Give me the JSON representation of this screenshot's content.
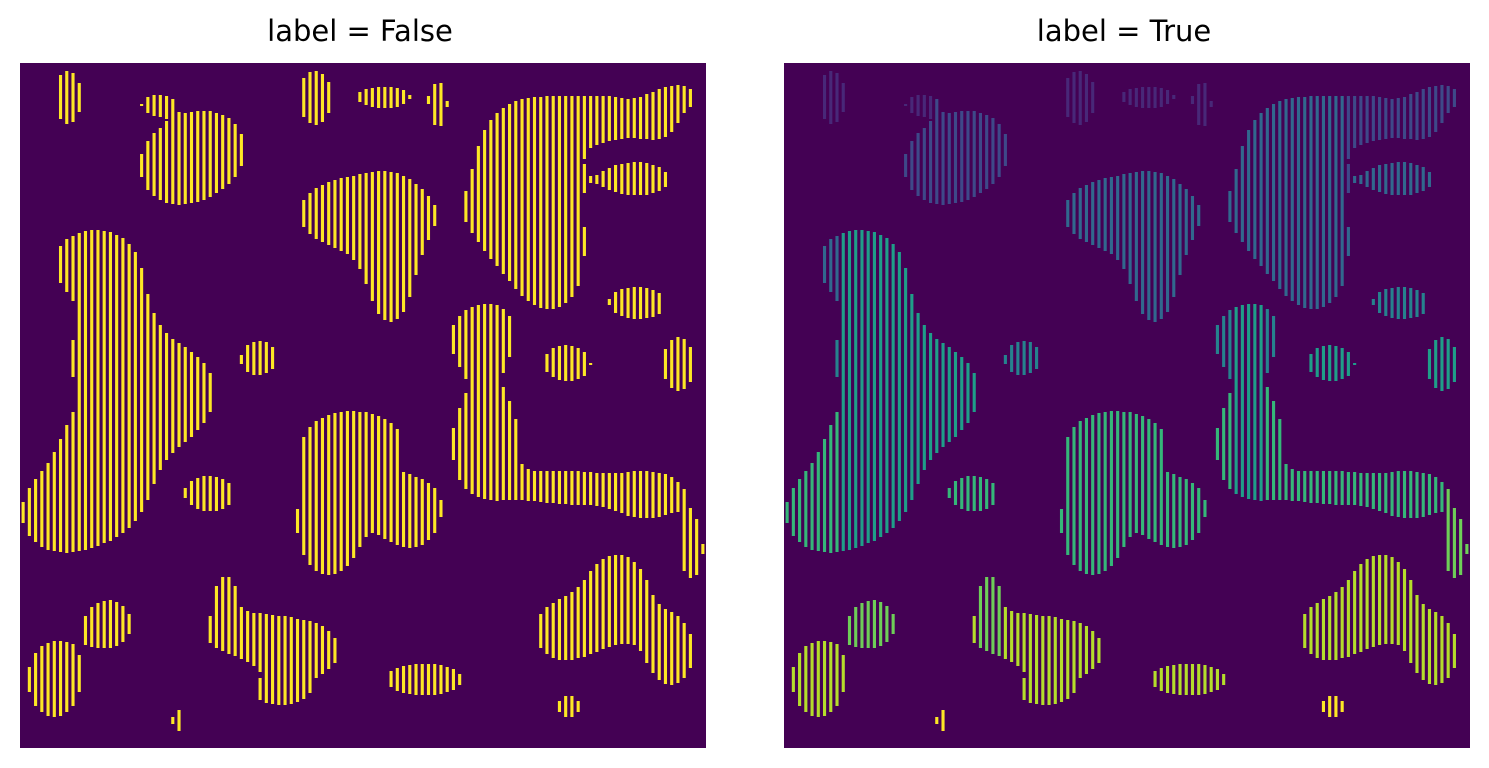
{
  "colors": {
    "background": "#440154",
    "false_foreground": "#fde725",
    "viridis": [
      "#482878",
      "#3e4989",
      "#31688e",
      "#26828e",
      "#1f9e89",
      "#35b779",
      "#6ece58",
      "#b5de2b",
      "#fde725"
    ]
  },
  "chart_data": [
    {
      "type": "heatmap",
      "title": "label = False",
      "colormap": "viridis",
      "mode": "binary",
      "axes_visible": false,
      "grid": false,
      "grid_size": [
        80,
        80
      ]
    },
    {
      "type": "heatmap",
      "title": "label = True",
      "colormap": "viridis",
      "mode": "labeled",
      "axes_visible": false,
      "grid": false,
      "grid_size": [
        80,
        80
      ]
    }
  ]
}
